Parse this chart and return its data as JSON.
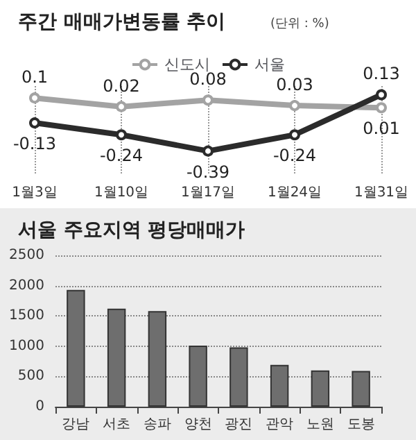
{
  "chart_data": [
    {
      "type": "line",
      "title": "주간 매매가변동률 추이",
      "subtitle": "(단위 : %)",
      "categories": [
        "1월3일",
        "1월10일",
        "1월17일",
        "1월24일",
        "1월31일"
      ],
      "series": [
        {
          "name": "신도시",
          "color": "#a3a3a3",
          "values": [
            0.1,
            0.02,
            0.08,
            0.03,
            0.01
          ]
        },
        {
          "name": "서울",
          "color": "#2b2b2b",
          "values": [
            -0.13,
            -0.24,
            -0.39,
            -0.24,
            0.13
          ]
        }
      ],
      "data_labels": true,
      "marker": "circle",
      "line_style": "solid",
      "grid": "x",
      "legend": "top",
      "tick_labels": "x"
    },
    {
      "type": "bar",
      "title": "서울 주요지역 평당매매가",
      "categories": [
        "강남",
        "서초",
        "송파",
        "양천",
        "광진",
        "관악",
        "노원",
        "도봉"
      ],
      "values": [
        1930,
        1620,
        1580,
        1010,
        980,
        690,
        600,
        590
      ],
      "color": "#6e6e6e",
      "ylim": [
        0,
        2500
      ],
      "yticks": [
        0,
        500,
        1000,
        1500,
        2000,
        2500
      ],
      "grid": "y"
    }
  ]
}
